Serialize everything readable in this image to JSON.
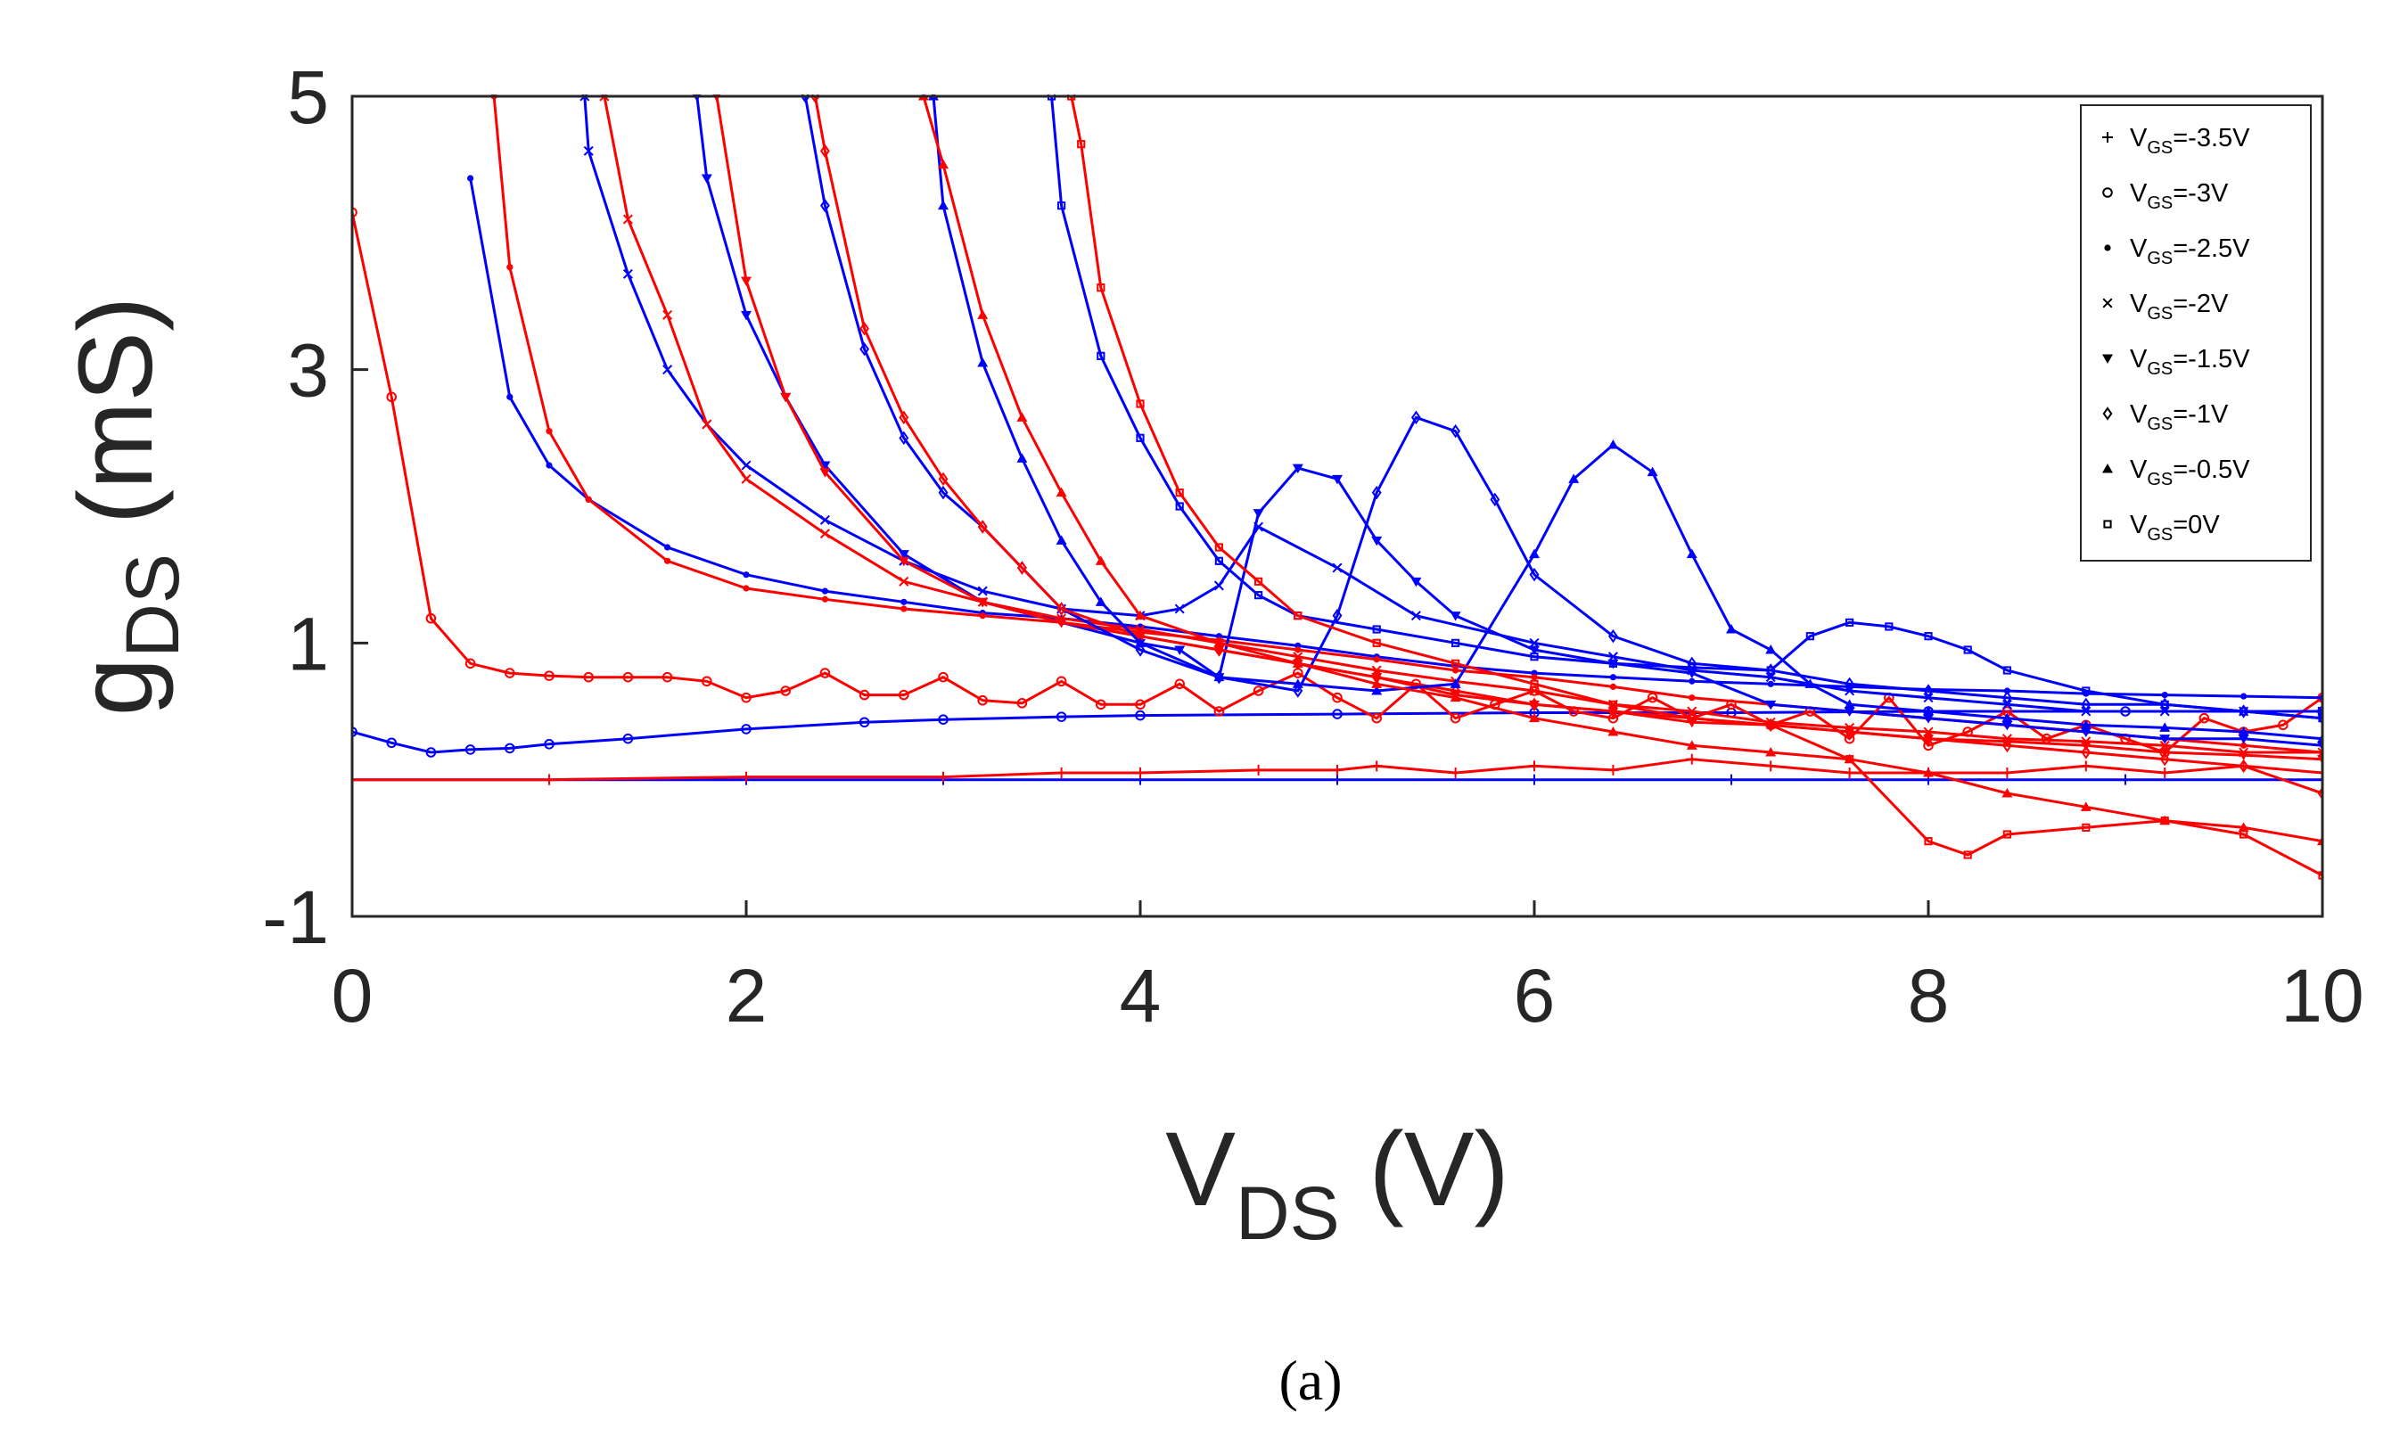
{
  "chart_data": {
    "type": "line",
    "title": "",
    "xlabel": {
      "main": "V",
      "sub": "DS",
      "unit": " (V)"
    },
    "ylabel": {
      "main": "g",
      "sub": "DS",
      "unit": " (mS)"
    },
    "xlim": [
      0,
      10
    ],
    "ylim": [
      -1,
      5
    ],
    "xticks": [
      0,
      2,
      4,
      6,
      8,
      10
    ],
    "xtick_labels": [
      "0",
      "2",
      "4",
      "6",
      "8",
      "10"
    ],
    "yticks": [
      -1,
      1,
      3,
      5
    ],
    "ytick_labels": [
      "-1",
      "1",
      "3",
      "5"
    ],
    "grid": false,
    "legend_position": "top-right",
    "caption": "(a)",
    "colors": {
      "blue": "#0000ff",
      "red": "#ff0000",
      "axis": "#262626"
    },
    "legend": [
      {
        "prefix": "V",
        "sub": "GS",
        "suffix": "=-3.5V",
        "marker": "plus"
      },
      {
        "prefix": "V",
        "sub": "GS",
        "suffix": "=-3V",
        "marker": "circle"
      },
      {
        "prefix": "V",
        "sub": "GS",
        "suffix": "=-2.5V",
        "marker": "dot"
      },
      {
        "prefix": "V",
        "sub": "GS",
        "suffix": "=-2V",
        "marker": "x"
      },
      {
        "prefix": "V",
        "sub": "GS",
        "suffix": "=-1.5V",
        "marker": "triangle-down"
      },
      {
        "prefix": "V",
        "sub": "GS",
        "suffix": "=-1V",
        "marker": "diamond"
      },
      {
        "prefix": "V",
        "sub": "GS",
        "suffix": "=-0.5V",
        "marker": "triangle-up"
      },
      {
        "prefix": "V",
        "sub": "GS",
        "suffix": "=0V",
        "marker": "square"
      }
    ],
    "series": [
      {
        "name": "VGS=-3.5V blue",
        "color": "blue",
        "marker": "plus",
        "x": [
          0,
          1,
          2,
          3,
          4,
          5,
          6,
          7,
          8,
          9,
          10
        ],
        "y": [
          0,
          0,
          0,
          0,
          0,
          0,
          0,
          0,
          0,
          0,
          0
        ]
      },
      {
        "name": "VGS=-3.5V red",
        "color": "red",
        "marker": "plus",
        "x": [
          0,
          1,
          2,
          3,
          3.6,
          4,
          4.6,
          5,
          5.2,
          5.6,
          6,
          6.4,
          6.8,
          7.2,
          7.6,
          8,
          8.4,
          8.8,
          9.2,
          9.6,
          10
        ],
        "y": [
          0,
          0,
          0.02,
          0.02,
          0.05,
          0.05,
          0.07,
          0.07,
          0.1,
          0.05,
          0.1,
          0.07,
          0.15,
          0.1,
          0.05,
          0.05,
          0.05,
          0.1,
          0.05,
          0.1,
          0.05
        ]
      },
      {
        "name": "VGS=-3V blue",
        "color": "blue",
        "marker": "circle",
        "x": [
          0,
          0.2,
          0.4,
          0.6,
          0.8,
          1,
          1.4,
          2,
          2.6,
          3,
          3.6,
          4,
          5,
          6,
          7,
          8,
          9,
          10
        ],
        "y": [
          0.35,
          0.27,
          0.2,
          0.22,
          0.23,
          0.26,
          0.3,
          0.37,
          0.42,
          0.44,
          0.46,
          0.47,
          0.48,
          0.49,
          0.49,
          0.5,
          0.5,
          0.5
        ]
      },
      {
        "name": "VGS=-3V red",
        "color": "red",
        "marker": "circle",
        "x": [
          0,
          0.2,
          0.4,
          0.6,
          0.8,
          1,
          1.2,
          1.4,
          1.6,
          1.8,
          2,
          2.2,
          2.4,
          2.6,
          2.8,
          3,
          3.2,
          3.4,
          3.6,
          3.8,
          4,
          4.2,
          4.4,
          4.6,
          4.8,
          5,
          5.2,
          5.4,
          5.6,
          5.8,
          6,
          6.2,
          6.4,
          6.6,
          6.8,
          7,
          7.2,
          7.4,
          7.6,
          7.8,
          8,
          8.2,
          8.4,
          8.6,
          8.8,
          9,
          9.2,
          9.4,
          9.6,
          9.8,
          10
        ],
        "y": [
          4.15,
          2.8,
          1.18,
          0.85,
          0.78,
          0.76,
          0.75,
          0.75,
          0.75,
          0.72,
          0.6,
          0.65,
          0.78,
          0.62,
          0.62,
          0.75,
          0.58,
          0.56,
          0.72,
          0.55,
          0.55,
          0.7,
          0.5,
          0.65,
          0.78,
          0.6,
          0.45,
          0.7,
          0.45,
          0.55,
          0.65,
          0.5,
          0.45,
          0.6,
          0.45,
          0.55,
          0.4,
          0.5,
          0.3,
          0.6,
          0.25,
          0.35,
          0.5,
          0.3,
          0.4,
          0.3,
          0.2,
          0.45,
          0.35,
          0.4,
          0.6
        ]
      },
      {
        "name": "VGS=-2.5V blue",
        "color": "blue",
        "marker": "dot",
        "x": [
          0.6,
          0.8,
          1,
          1.2,
          1.6,
          2,
          2.4,
          2.8,
          3.2,
          3.6,
          4,
          4.4,
          4.8,
          5.2,
          5.6,
          6,
          6.4,
          6.8,
          7.2,
          7.6,
          8,
          8.4,
          8.8,
          9.2,
          9.6,
          10
        ],
        "y": [
          4.4,
          2.8,
          2.3,
          2.05,
          1.7,
          1.5,
          1.38,
          1.3,
          1.22,
          1.18,
          1.12,
          1.05,
          0.98,
          0.9,
          0.83,
          0.78,
          0.75,
          0.72,
          0.7,
          0.68,
          0.66,
          0.65,
          0.63,
          0.62,
          0.61,
          0.6
        ]
      },
      {
        "name": "VGS=-2.5V red",
        "color": "red",
        "marker": "dot",
        "x": [
          0.72,
          0.8,
          1,
          1.2,
          1.6,
          2,
          2.4,
          2.8,
          3.2,
          3.6,
          4,
          4.4,
          4.8,
          5.2,
          5.6,
          6,
          6.4,
          6.8,
          7.2,
          7.6,
          8,
          8.4,
          8.8,
          9.2,
          9.6,
          10
        ],
        "y": [
          5,
          3.75,
          2.55,
          2.05,
          1.6,
          1.4,
          1.32,
          1.25,
          1.2,
          1.15,
          1.08,
          1.02,
          0.95,
          0.88,
          0.8,
          0.75,
          0.68,
          0.6,
          0.55,
          0.5,
          0.45,
          0.4,
          0.35,
          0.3,
          0.25,
          0.2
        ]
      },
      {
        "name": "VGS=-2V blue",
        "color": "blue",
        "marker": "x",
        "x": [
          1.18,
          1.2,
          1.4,
          1.6,
          1.8,
          2,
          2.4,
          2.8,
          3.2,
          3.6,
          4,
          4.2,
          4.4,
          4.6,
          5,
          5.4,
          6,
          6.4,
          6.8,
          7.2,
          7.6,
          8,
          8.4,
          8.8,
          9.2,
          9.6,
          10
        ],
        "y": [
          5,
          4.6,
          3.7,
          3.0,
          2.6,
          2.3,
          1.9,
          1.6,
          1.38,
          1.25,
          1.2,
          1.25,
          1.42,
          1.85,
          1.55,
          1.2,
          1.0,
          0.9,
          0.8,
          0.75,
          0.65,
          0.6,
          0.55,
          0.5,
          0.5,
          0.5,
          0.5
        ]
      },
      {
        "name": "VGS=-2V red",
        "color": "red",
        "marker": "x",
        "x": [
          1.28,
          1.4,
          1.6,
          1.8,
          2,
          2.4,
          2.8,
          3.2,
          3.6,
          4,
          4.4,
          4.8,
          5.2,
          5.6,
          6,
          6.4,
          6.8,
          7.2,
          7.6,
          8,
          8.4,
          8.8,
          9.2,
          9.6,
          10
        ],
        "y": [
          5,
          4.1,
          3.4,
          2.6,
          2.2,
          1.8,
          1.45,
          1.3,
          1.18,
          1.1,
          1.0,
          0.9,
          0.8,
          0.72,
          0.65,
          0.55,
          0.5,
          0.42,
          0.38,
          0.35,
          0.3,
          0.28,
          0.25,
          0.2,
          0.2
        ]
      },
      {
        "name": "VGS=-1.5V blue",
        "color": "blue",
        "marker": "triangle-down",
        "x": [
          1.75,
          1.8,
          2,
          2.2,
          2.4,
          2.8,
          3.2,
          3.6,
          4,
          4.2,
          4.4,
          4.6,
          4.8,
          5,
          5.2,
          5.4,
          5.6,
          6,
          6.4,
          6.8,
          7.2,
          7.6,
          8,
          8.4,
          8.8,
          9.2,
          9.6,
          10
        ],
        "y": [
          5,
          4.4,
          3.4,
          2.8,
          2.3,
          1.65,
          1.3,
          1.15,
          1.0,
          0.95,
          0.75,
          1.95,
          2.28,
          2.2,
          1.75,
          1.45,
          1.2,
          0.95,
          0.85,
          0.78,
          0.55,
          0.5,
          0.45,
          0.4,
          0.35,
          0.3,
          0.3,
          0.25
        ]
      },
      {
        "name": "VGS=-1.5V red",
        "color": "red",
        "marker": "triangle-down",
        "x": [
          1.85,
          2,
          2.2,
          2.4,
          2.8,
          3.2,
          3.6,
          4,
          4.4,
          4.8,
          5.2,
          5.6,
          6,
          6.4,
          6.8,
          7.2,
          7.6,
          8,
          8.4,
          8.8,
          9.2,
          9.6,
          10
        ],
        "y": [
          5,
          3.65,
          2.8,
          2.25,
          1.6,
          1.3,
          1.15,
          1.05,
          0.95,
          0.85,
          0.75,
          0.62,
          0.55,
          0.5,
          0.42,
          0.4,
          0.35,
          0.3,
          0.28,
          0.25,
          0.2,
          0.18,
          0.15
        ]
      },
      {
        "name": "VGS=-1V blue",
        "color": "blue",
        "marker": "diamond",
        "x": [
          2.3,
          2.4,
          2.6,
          2.8,
          3,
          3.2,
          3.4,
          3.6,
          4,
          4.4,
          4.8,
          5,
          5.2,
          5.4,
          5.6,
          5.8,
          6,
          6.4,
          6.8,
          7.2,
          7.6,
          8,
          8.4,
          8.8,
          9.2,
          9.6,
          10
        ],
        "y": [
          5,
          4.2,
          3.15,
          2.5,
          2.1,
          1.85,
          1.55,
          1.25,
          0.95,
          0.75,
          0.65,
          1.2,
          2.1,
          2.65,
          2.55,
          2.05,
          1.5,
          1.05,
          0.85,
          0.8,
          0.7,
          0.65,
          0.6,
          0.55,
          0.55,
          0.5,
          0.45
        ]
      },
      {
        "name": "VGS=-1V red",
        "color": "red",
        "marker": "diamond",
        "x": [
          2.35,
          2.4,
          2.6,
          2.8,
          3,
          3.2,
          3.4,
          3.6,
          4,
          4.4,
          4.8,
          5.2,
          5.6,
          6,
          6.4,
          6.8,
          7.2,
          7.6,
          8,
          8.4,
          8.8,
          9.2,
          9.6,
          10
        ],
        "y": [
          5,
          4.6,
          3.3,
          2.65,
          2.2,
          1.85,
          1.55,
          1.25,
          1.05,
          0.95,
          0.85,
          0.75,
          0.65,
          0.55,
          0.5,
          0.45,
          0.4,
          0.35,
          0.3,
          0.25,
          0.2,
          0.15,
          0.1,
          -0.1
        ]
      },
      {
        "name": "VGS=-0.5V blue",
        "color": "blue",
        "marker": "triangle-up",
        "x": [
          2.95,
          3,
          3.2,
          3.4,
          3.6,
          3.8,
          4,
          4.4,
          4.8,
          5.2,
          5.6,
          6,
          6.2,
          6.4,
          6.6,
          6.8,
          7,
          7.2,
          7.4,
          7.6,
          8,
          8.4,
          8.8,
          9.2,
          9.6,
          10
        ],
        "y": [
          5,
          4.2,
          3.05,
          2.35,
          1.75,
          1.3,
          1.0,
          0.75,
          0.7,
          0.65,
          0.7,
          1.65,
          2.2,
          2.45,
          2.25,
          1.65,
          1.1,
          0.95,
          0.7,
          0.55,
          0.5,
          0.45,
          0.4,
          0.38,
          0.35,
          0.3
        ]
      },
      {
        "name": "VGS=-0.5V red",
        "color": "red",
        "marker": "triangle-up",
        "x": [
          2.9,
          3,
          3.2,
          3.4,
          3.6,
          3.8,
          4,
          4.4,
          4.8,
          5.2,
          5.6,
          6,
          6.4,
          6.8,
          7.2,
          7.6,
          8,
          8.4,
          8.8,
          9.2,
          9.6,
          10
        ],
        "y": [
          5,
          4.5,
          3.4,
          2.65,
          2.1,
          1.6,
          1.2,
          1.0,
          0.85,
          0.7,
          0.6,
          0.45,
          0.35,
          0.25,
          0.2,
          0.15,
          0.05,
          -0.1,
          -0.2,
          -0.3,
          -0.35,
          -0.45
        ]
      },
      {
        "name": "VGS=0V blue",
        "color": "blue",
        "marker": "square",
        "x": [
          3.55,
          3.6,
          3.8,
          4,
          4.2,
          4.4,
          4.6,
          4.8,
          5.2,
          5.6,
          6,
          6.4,
          6.8,
          7.2,
          7.4,
          7.6,
          7.8,
          8,
          8.2,
          8.4,
          8.8,
          9.2,
          9.6,
          10
        ],
        "y": [
          5,
          4.2,
          3.1,
          2.5,
          2.0,
          1.6,
          1.35,
          1.2,
          1.1,
          1.0,
          0.9,
          0.85,
          0.82,
          0.8,
          1.05,
          1.15,
          1.12,
          1.05,
          0.95,
          0.8,
          0.65,
          0.55,
          0.5,
          0.45
        ]
      },
      {
        "name": "VGS=0V red",
        "color": "red",
        "marker": "square",
        "x": [
          3.65,
          3.7,
          3.8,
          4,
          4.2,
          4.4,
          4.6,
          4.8,
          5.2,
          5.6,
          6,
          6.4,
          6.8,
          7.2,
          7.6,
          8,
          8.2,
          8.4,
          8.8,
          9.2,
          9.6,
          10
        ],
        "y": [
          5,
          4.65,
          3.6,
          2.75,
          2.1,
          1.7,
          1.45,
          1.2,
          1.0,
          0.85,
          0.7,
          0.55,
          0.45,
          0.4,
          0.15,
          -0.45,
          -0.55,
          -0.4,
          -0.35,
          -0.3,
          -0.4,
          -0.7
        ]
      }
    ]
  }
}
